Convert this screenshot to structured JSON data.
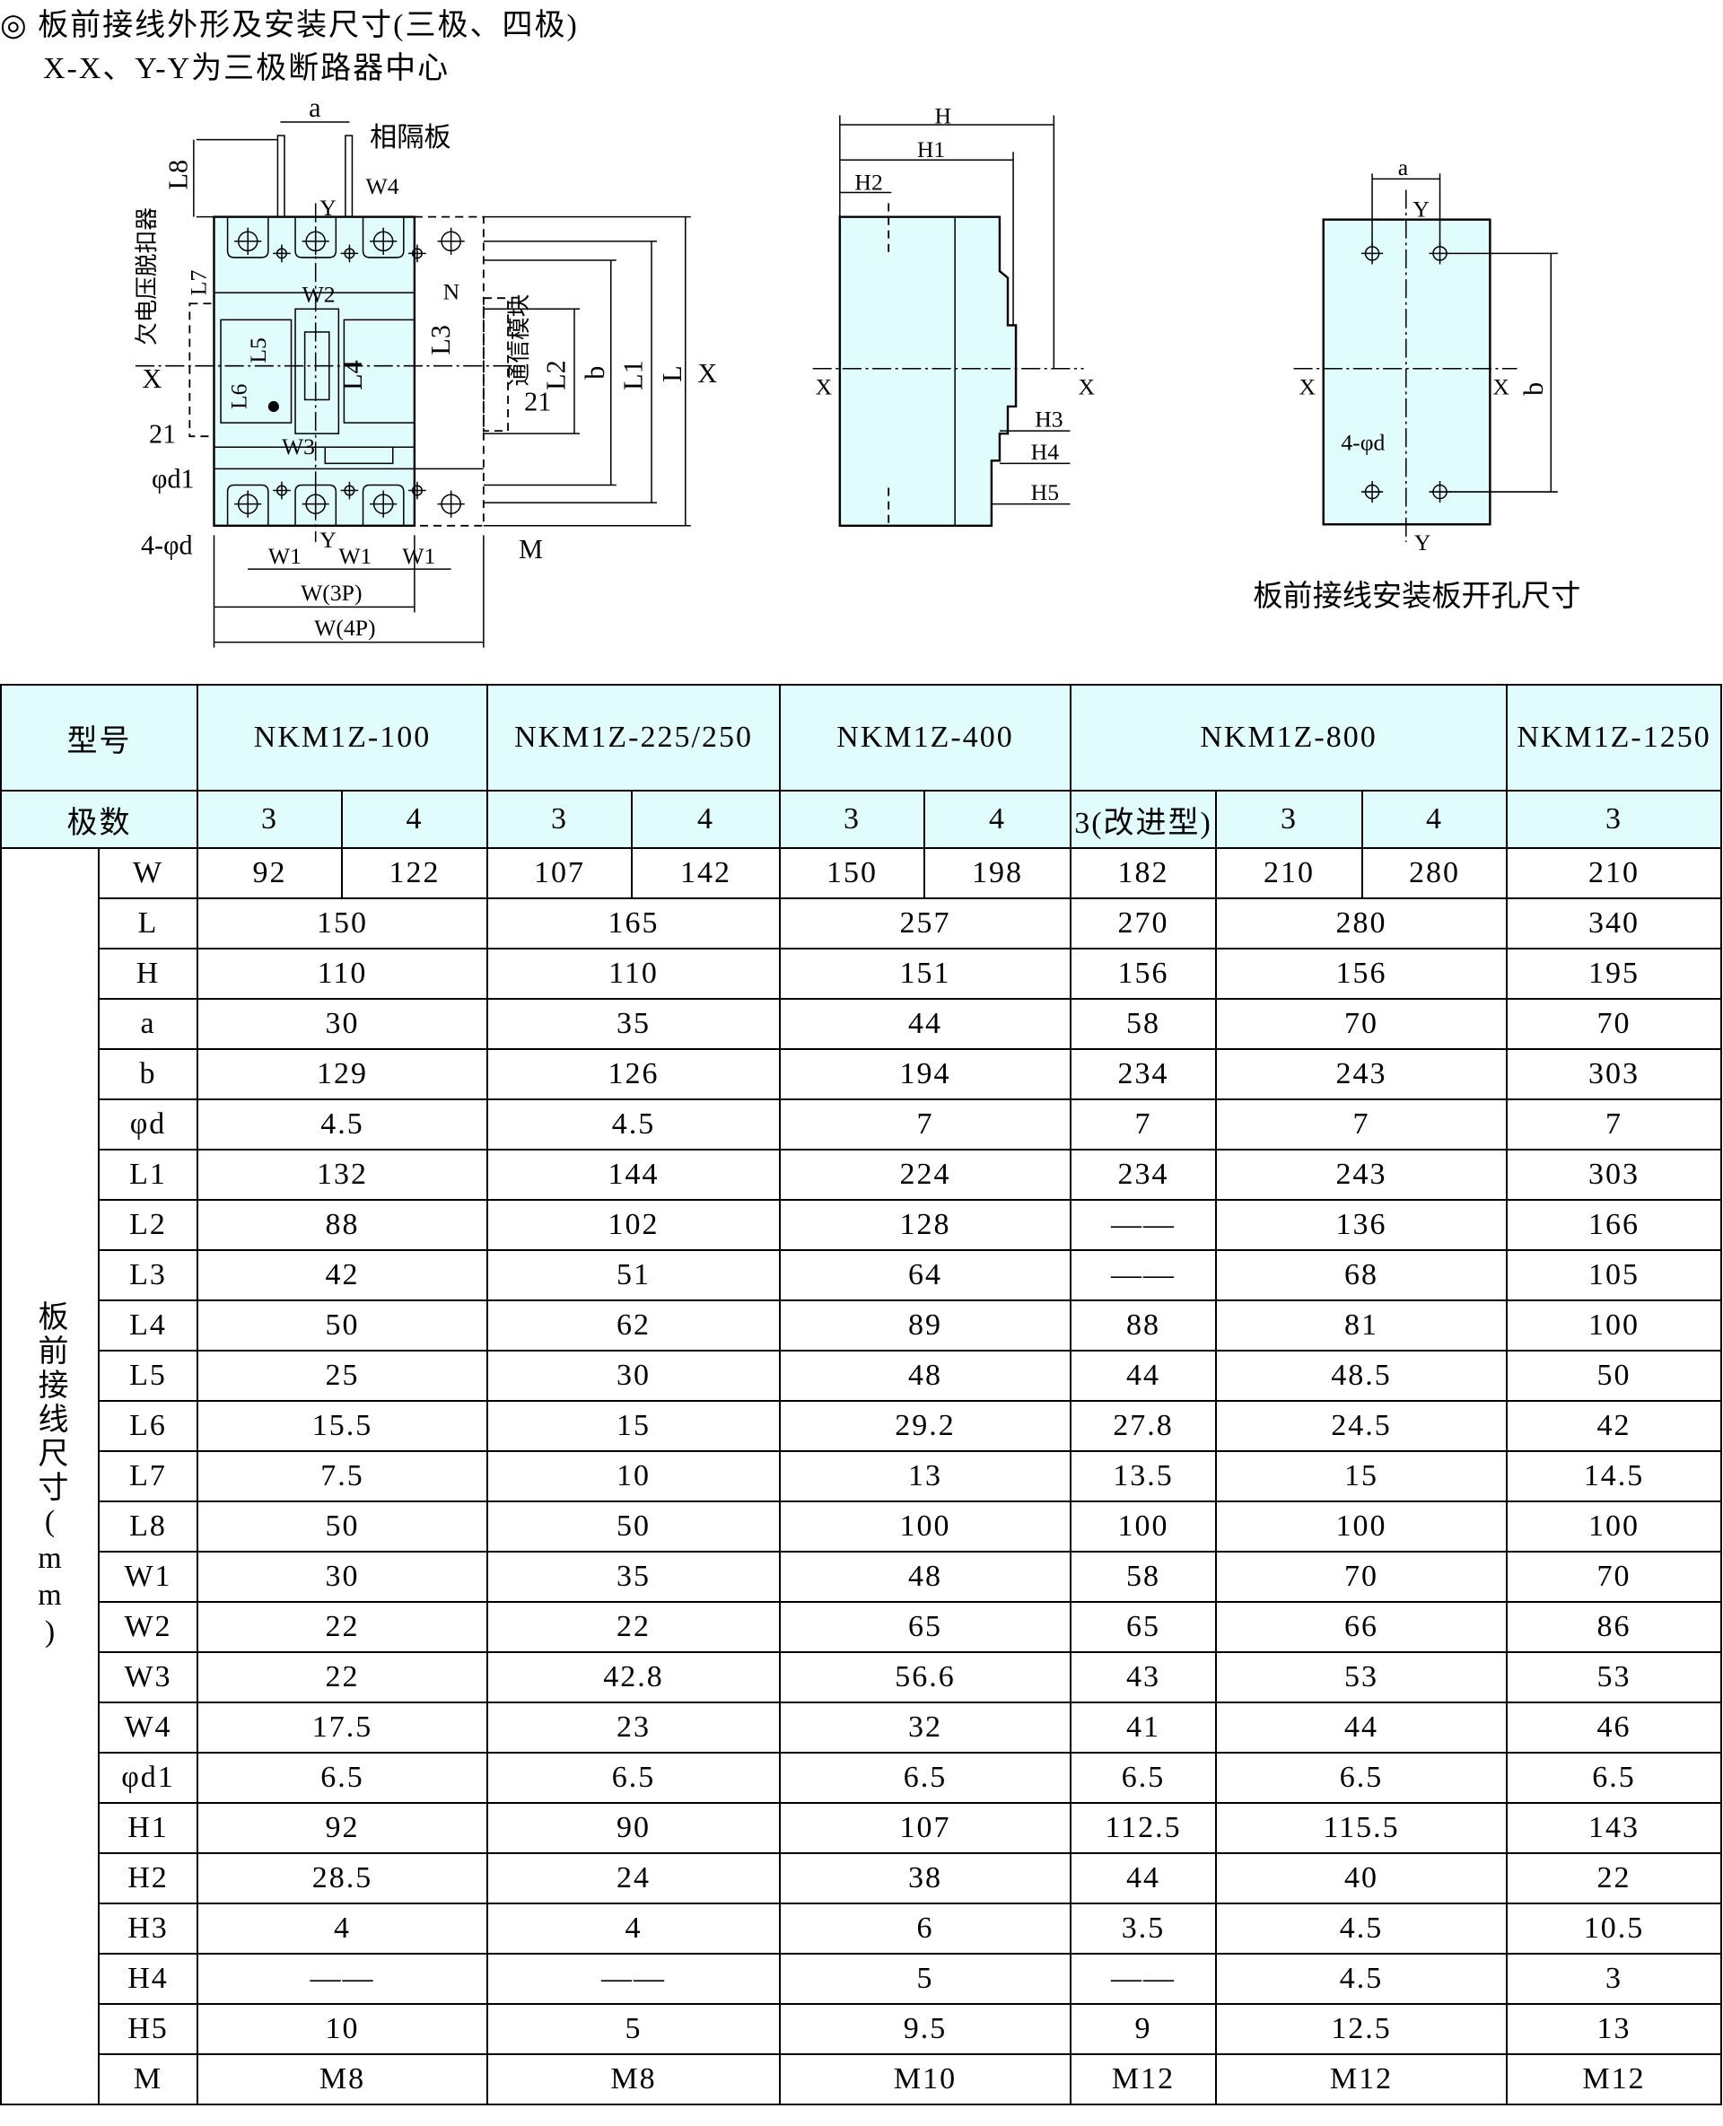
{
  "header": {
    "title": "◎ 板前接线外形及安装尺寸(三极、四极)",
    "subtitle": "X-X、Y-Y为三极断路器中心"
  },
  "diagram": {
    "front": {
      "a": "a",
      "partition": "相隔板",
      "L8": "L8",
      "W4": "W4",
      "Y_top": "Y",
      "L7": "L7",
      "uv_release": "欠电压脱扣器",
      "W2": "W2",
      "N": "N",
      "L5": "L5",
      "L3": "L3",
      "comm_module": "通信模块",
      "L4": "L4",
      "L2": "L2",
      "b": "b",
      "L1": "L1",
      "L": "L",
      "X_right": "X",
      "X_left": "X",
      "L6": "L6",
      "dim21_right": "21",
      "dim21_left": "21",
      "W3": "W3",
      "phi_d1": "φd1",
      "holes": "4-φd",
      "Y_bottom": "Y",
      "W1": "W1",
      "M": "M",
      "W3P": "W(3P)",
      "W4P": "W(4P)"
    },
    "side": {
      "H": "H",
      "H1": "H1",
      "H2": "H2",
      "X_left": "X",
      "X_right": "X",
      "H3": "H3",
      "H4": "H4",
      "H5": "H5"
    },
    "panel": {
      "a": "a",
      "Y_top": "Y",
      "X_left": "X",
      "X_right": "X",
      "b": "b",
      "holes": "4-φd",
      "Y_bottom": "Y",
      "caption": "板前接线安装板开孔尺寸"
    },
    "fill_color": "#e0fcfc"
  },
  "table": {
    "model_label": "型号",
    "pole_label": "极数",
    "side_label": "板前接线尺寸(mm)",
    "models": [
      "NKM1Z-100",
      "NKM1Z-225/250",
      "NKM1Z-400",
      "NKM1Z-800",
      "NKM1Z-1250"
    ],
    "poles": [
      "3",
      "4",
      "3",
      "4",
      "3",
      "4",
      "3(改进型)",
      "3",
      "4",
      "3"
    ],
    "w_row": {
      "name": "W",
      "values": [
        "92",
        "122",
        "107",
        "142",
        "150",
        "198",
        "182",
        "210",
        "280",
        "210"
      ]
    },
    "rows": [
      {
        "name": "L",
        "values": [
          "150",
          "165",
          "257",
          "270",
          "280",
          "340"
        ]
      },
      {
        "name": "H",
        "values": [
          "110",
          "110",
          "151",
          "156",
          "156",
          "195"
        ]
      },
      {
        "name": "a",
        "values": [
          "30",
          "35",
          "44",
          "58",
          "70",
          "70"
        ]
      },
      {
        "name": "b",
        "values": [
          "129",
          "126",
          "194",
          "234",
          "243",
          "303"
        ]
      },
      {
        "name": "φd",
        "values": [
          "4.5",
          "4.5",
          "7",
          "7",
          "7",
          "7"
        ]
      },
      {
        "name": "L1",
        "values": [
          "132",
          "144",
          "224",
          "234",
          "243",
          "303"
        ]
      },
      {
        "name": "L2",
        "values": [
          "88",
          "102",
          "128",
          "——",
          "136",
          "166"
        ]
      },
      {
        "name": "L3",
        "values": [
          "42",
          "51",
          "64",
          "——",
          "68",
          "105"
        ]
      },
      {
        "name": "L4",
        "values": [
          "50",
          "62",
          "89",
          "88",
          "81",
          "100"
        ]
      },
      {
        "name": "L5",
        "values": [
          "25",
          "30",
          "48",
          "44",
          "48.5",
          "50"
        ]
      },
      {
        "name": "L6",
        "values": [
          "15.5",
          "15",
          "29.2",
          "27.8",
          "24.5",
          "42"
        ]
      },
      {
        "name": "L7",
        "values": [
          "7.5",
          "10",
          "13",
          "13.5",
          "15",
          "14.5"
        ]
      },
      {
        "name": "L8",
        "values": [
          "50",
          "50",
          "100",
          "100",
          "100",
          "100"
        ]
      },
      {
        "name": "W1",
        "values": [
          "30",
          "35",
          "48",
          "58",
          "70",
          "70"
        ]
      },
      {
        "name": "W2",
        "values": [
          "22",
          "22",
          "65",
          "65",
          "66",
          "86"
        ]
      },
      {
        "name": "W3",
        "values": [
          "22",
          "42.8",
          "56.6",
          "43",
          "53",
          "53"
        ]
      },
      {
        "name": "W4",
        "values": [
          "17.5",
          "23",
          "32",
          "41",
          "44",
          "46"
        ]
      },
      {
        "name": "φd1",
        "values": [
          "6.5",
          "6.5",
          "6.5",
          "6.5",
          "6.5",
          "6.5"
        ]
      },
      {
        "name": "H1",
        "values": [
          "92",
          "90",
          "107",
          "112.5",
          "115.5",
          "143"
        ]
      },
      {
        "name": "H2",
        "values": [
          "28.5",
          "24",
          "38",
          "44",
          "40",
          "22"
        ]
      },
      {
        "name": "H3",
        "values": [
          "4",
          "4",
          "6",
          "3.5",
          "4.5",
          "10.5"
        ]
      },
      {
        "name": "H4",
        "values": [
          "——",
          "——",
          "5",
          "——",
          "4.5",
          "3"
        ]
      },
      {
        "name": "H5",
        "values": [
          "10",
          "5",
          "9.5",
          "9",
          "12.5",
          "13"
        ]
      },
      {
        "name": "M",
        "values": [
          "M8",
          "M8",
          "M10",
          "M12",
          "M12",
          "M12"
        ]
      }
    ]
  }
}
